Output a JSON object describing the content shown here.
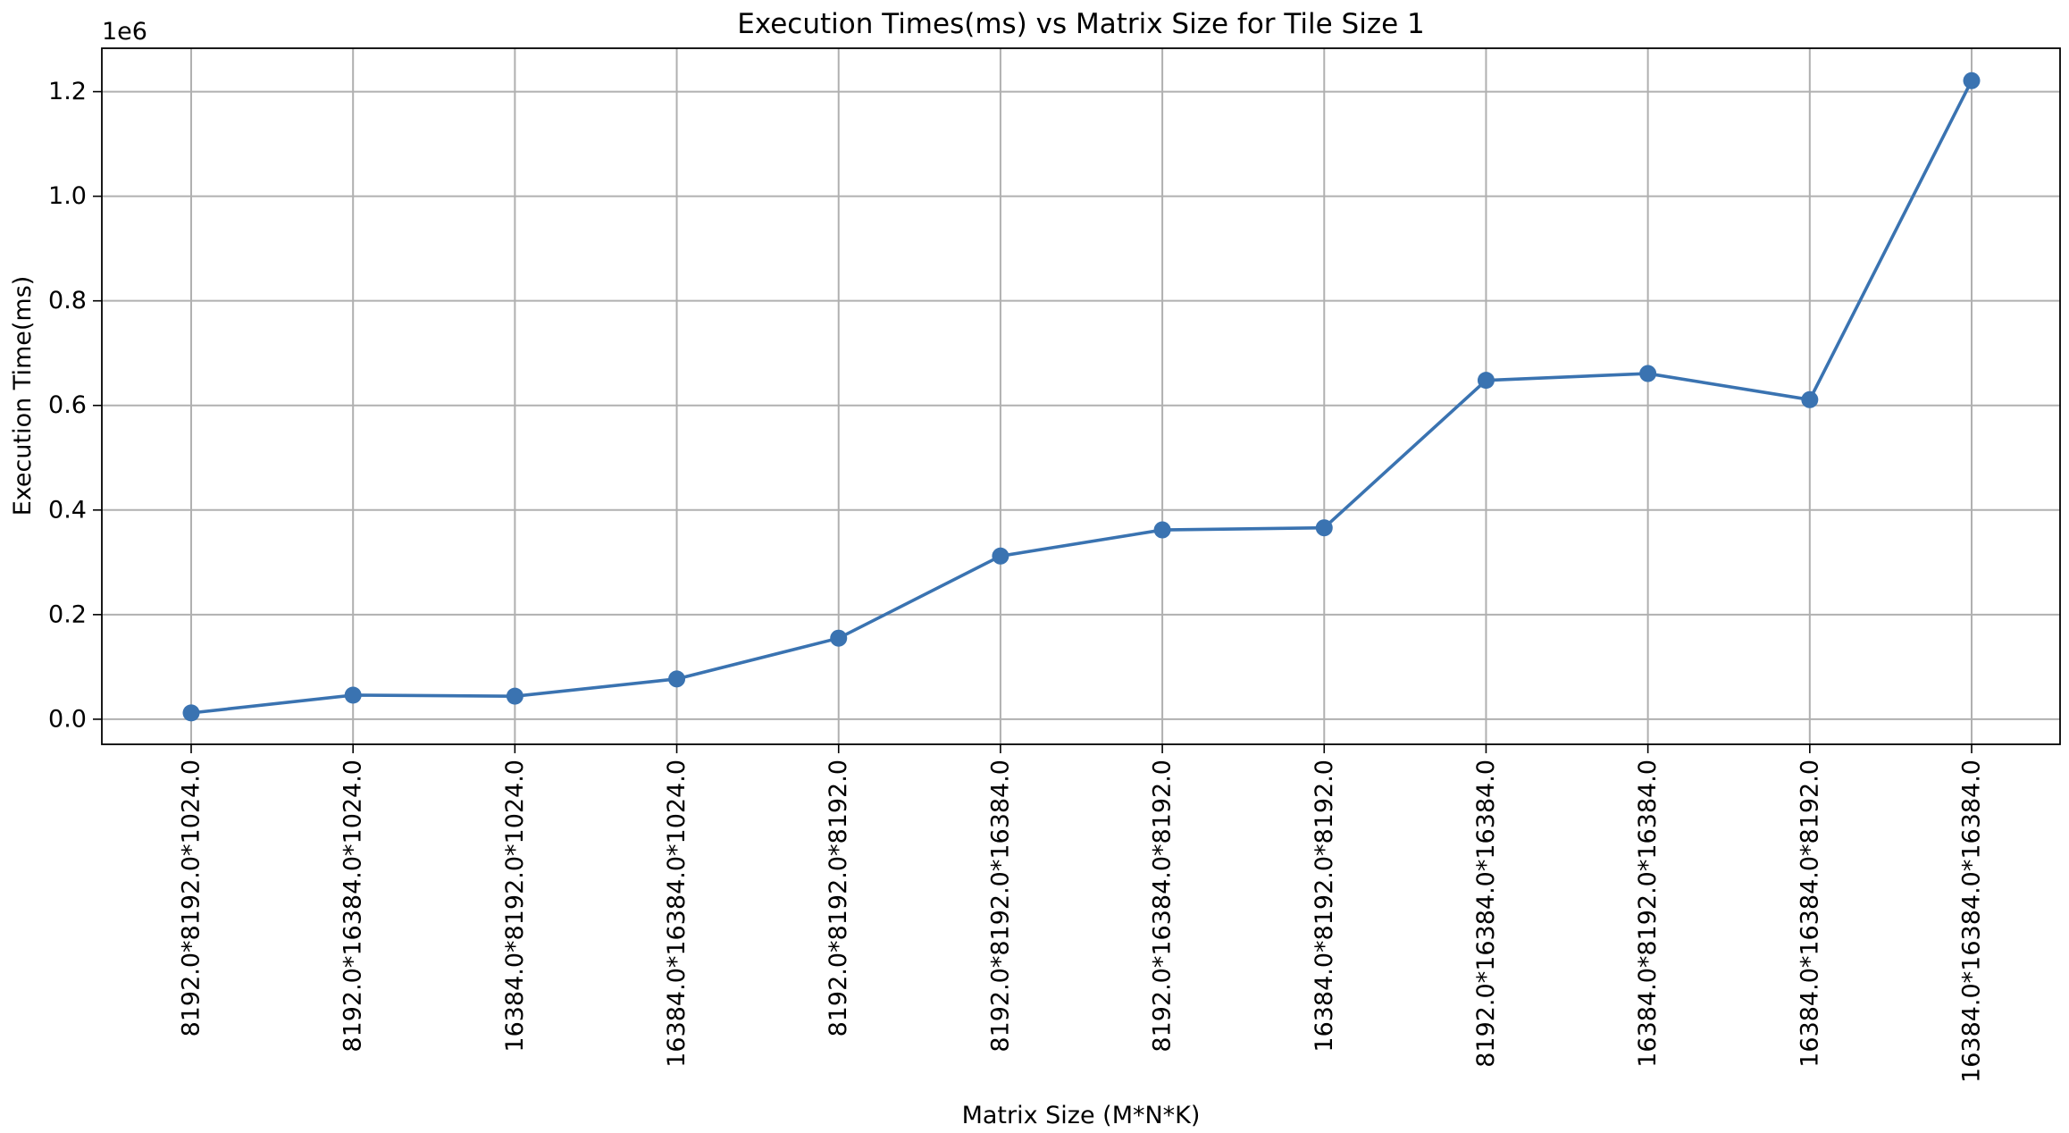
{
  "chart_data": {
    "type": "line",
    "title": "Execution Times(ms) vs Matrix Size for Tile Size 1",
    "xlabel": "Matrix Size (M*N*K)",
    "ylabel": "Execution Time(ms)",
    "y_offset_label": "1e6",
    "categories": [
      "8192.0*8192.0*1024.0",
      "8192.0*16384.0*1024.0",
      "16384.0*8192.0*1024.0",
      "16384.0*16384.0*1024.0",
      "8192.0*8192.0*8192.0",
      "8192.0*8192.0*16384.0",
      "8192.0*16384.0*8192.0",
      "16384.0*8192.0*8192.0",
      "8192.0*16384.0*16384.0",
      "16384.0*8192.0*16384.0",
      "16384.0*16384.0*8192.0",
      "16384.0*16384.0*16384.0"
    ],
    "series": [
      {
        "values": [
          12000,
          46000,
          44000,
          77000,
          155000,
          312000,
          362000,
          366000,
          648000,
          661000,
          611000,
          1221000
        ],
        "color": "#3a73b1",
        "marker": "circle"
      }
    ],
    "yticks": [
      {
        "value": 0,
        "label": "0.0"
      },
      {
        "value": 200000,
        "label": "0.2"
      },
      {
        "value": 400000,
        "label": "0.4"
      },
      {
        "value": 600000,
        "label": "0.6"
      },
      {
        "value": 800000,
        "label": "0.8"
      },
      {
        "value": 1000000,
        "label": "1.0"
      },
      {
        "value": 1200000,
        "label": "1.2"
      }
    ],
    "ylim": [
      -48000,
      1283000
    ],
    "grid": true,
    "legend": "none"
  }
}
